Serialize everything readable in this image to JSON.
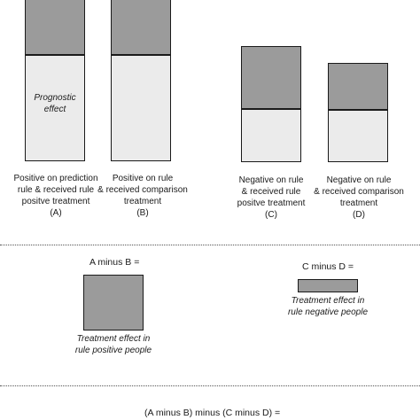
{
  "bars": {
    "a": {
      "inner_text_line1": "Prognostic",
      "inner_text_line2": "effect",
      "caption": [
        "Positive on prediction",
        "rule & received  rule",
        "positve treatment",
        "(A)"
      ]
    },
    "b": {
      "caption": [
        "Positive on rule",
        "& received comparison",
        "treatment",
        "(B)"
      ]
    },
    "c": {
      "caption": [
        "Negative on rule",
        "& received  rule",
        "positve treatment",
        "(C)"
      ]
    },
    "d": {
      "caption": [
        "Negative on rule",
        "& received  comparison",
        "treatment",
        "(D)"
      ]
    }
  },
  "differences": {
    "a_minus_b_label": "A minus B =",
    "a_minus_b_caption": [
      "Treatment effect in",
      "rule positive people"
    ],
    "c_minus_d_label": "C minus D =",
    "c_minus_d_caption": [
      "Treatment effect in",
      "rule negative people"
    ],
    "final_label": "(A minus B) minus (C minus D) ="
  },
  "colors": {
    "treatment_segment": "#9b9b9b",
    "baseline_segment": "#ebebeb",
    "outline": "#1a1a1a"
  }
}
